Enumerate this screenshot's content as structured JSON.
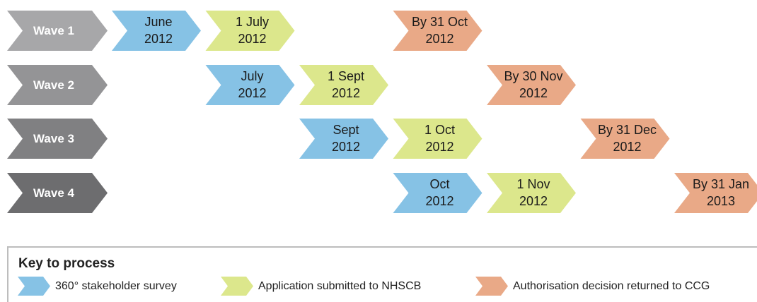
{
  "waves": [
    {
      "label": "Wave 1",
      "survey": [
        "June",
        "2012"
      ],
      "application": [
        "1 July",
        "2012"
      ],
      "decision": [
        "By 31 Oct",
        "2012"
      ]
    },
    {
      "label": "Wave 2",
      "survey": [
        "July",
        "2012"
      ],
      "application": [
        "1 Sept",
        "2012"
      ],
      "decision": [
        "By 30 Nov",
        "2012"
      ]
    },
    {
      "label": "Wave 3",
      "survey": [
        "Sept",
        "2012"
      ],
      "application": [
        "1 Oct",
        "2012"
      ],
      "decision": [
        "By 31 Dec",
        "2012"
      ]
    },
    {
      "label": "Wave 4",
      "survey": [
        "Oct",
        "2012"
      ],
      "application": [
        "1 Nov",
        "2012"
      ],
      "decision": [
        "By 31 Jan",
        "2013"
      ]
    }
  ],
  "key": {
    "title": "Key to process",
    "survey": "360° stakeholder survey",
    "application": "Application submitted to NHSCB",
    "decision": "Authorisation decision returned to CCG"
  }
}
